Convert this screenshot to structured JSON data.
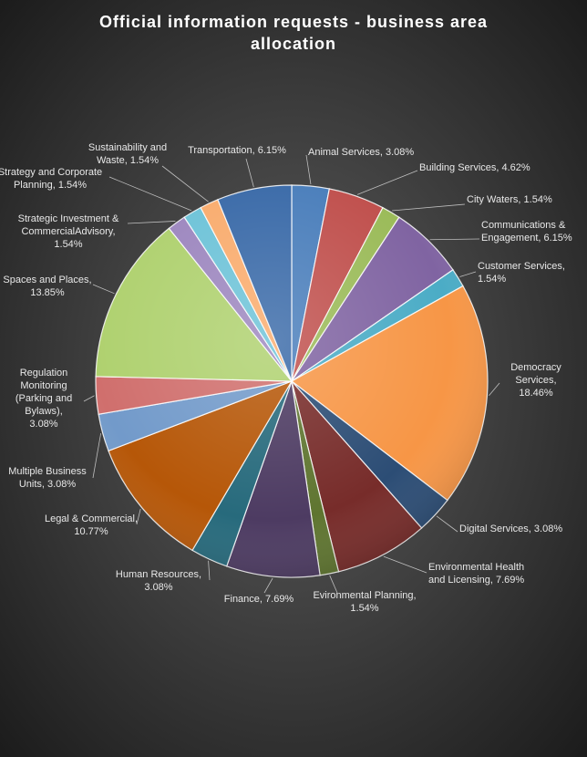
{
  "chart_data": {
    "type": "pie",
    "title": "Official information requests - business area allocation",
    "values": [
      3.08,
      4.62,
      1.54,
      6.15,
      1.54,
      18.46,
      3.08,
      7.69,
      1.54,
      7.69,
      3.08,
      10.77,
      3.08,
      3.08,
      13.85,
      1.54,
      1.54,
      1.54,
      6.15
    ],
    "value_labels": [
      "Animal Services, 3.08%",
      "Building Services, 4.62%",
      "City Waters, 1.54%",
      "Communications & Engagement, 6.15%",
      "Customer Services, 1.54%",
      "Democracy Services, 18.46%",
      "Digital Services, 3.08%",
      "Environmental Health and Licensing, 7.69%",
      "Evironmental Planning, 1.54%",
      "Finance, 7.69%",
      "Human Resources, 3.08%",
      "Legal & Commercial, 10.77%",
      "Multiple Business Units, 3.08%",
      "Regulation Monitoring (Parking and Bylaws), 3.08%",
      "Spaces and Places, 13.85%",
      "Strategic Investment & CommercialAdvisory, 1.54%",
      "Strategy and Corporate Planning, 1.54%",
      "Sustainability and Waste, 1.54%",
      "Transportation, 6.15%"
    ],
    "colors": [
      "#4a7ebb",
      "#c0504d",
      "#9bbb59",
      "#8064a2",
      "#4bacc6",
      "#f79646",
      "#2c4d75",
      "#772c2a",
      "#5f7530",
      "#4d3b62",
      "#276a7c",
      "#b65708",
      "#729aca",
      "#d06f6d",
      "#afd16f",
      "#9d87bf",
      "#6ec3d8",
      "#f9ac6e",
      "#3a6aa8"
    ]
  }
}
